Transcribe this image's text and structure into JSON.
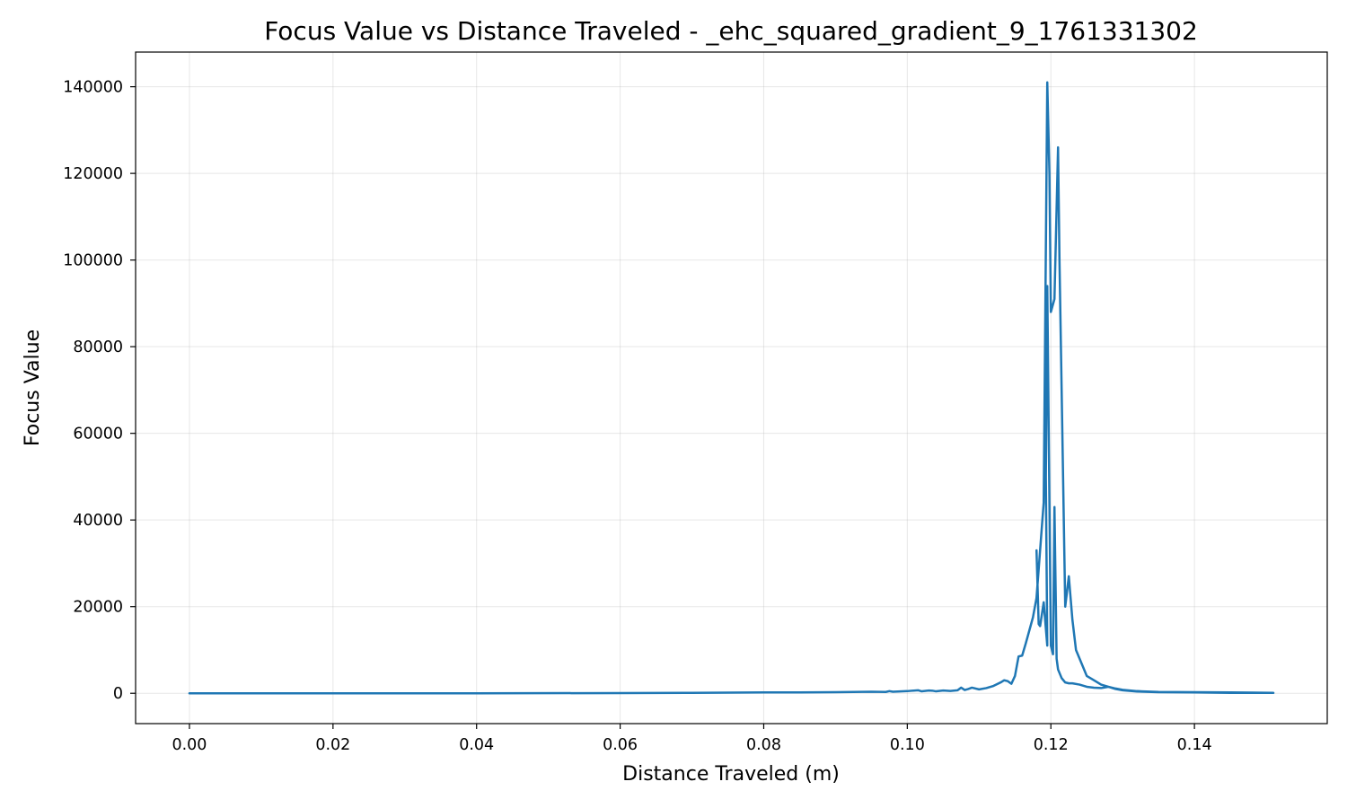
{
  "chart_data": {
    "type": "line",
    "title": "Focus Value vs Distance Traveled - _ehc_squared_gradient_9_1761331302",
    "xlabel": "Distance Traveled (m)",
    "ylabel": "Focus Value",
    "xlim": [
      -0.0075,
      0.1585
    ],
    "ylim": [
      -7000,
      148000
    ],
    "grid": true,
    "legend": "none",
    "x_ticks": [
      0.0,
      0.02,
      0.04,
      0.06,
      0.08,
      0.1,
      0.12,
      0.14
    ],
    "x_tick_labels": [
      "0.00",
      "0.02",
      "0.04",
      "0.06",
      "0.08",
      "0.10",
      "0.12",
      "0.14"
    ],
    "y_ticks": [
      0,
      20000,
      40000,
      60000,
      80000,
      100000,
      120000,
      140000
    ],
    "y_tick_labels": [
      "0",
      "20000",
      "40000",
      "60000",
      "80000",
      "100000",
      "120000",
      "140000"
    ],
    "series": [
      {
        "color": "#1f77b4",
        "x": [
          0.0,
          0.02,
          0.04,
          0.06,
          0.07,
          0.075,
          0.08,
          0.085,
          0.09,
          0.095,
          0.097,
          0.0975,
          0.098,
          0.1,
          0.1015,
          0.102,
          0.103,
          0.1035,
          0.104,
          0.105,
          0.106,
          0.107,
          0.1075,
          0.108,
          0.1085,
          0.109,
          0.11,
          0.111,
          0.112,
          0.113,
          0.1135,
          0.114,
          0.1145,
          0.115,
          0.1155,
          0.116,
          0.1165,
          0.117,
          0.1175,
          0.118,
          0.1185,
          0.119,
          0.1195,
          0.1198,
          0.12,
          0.1205,
          0.121,
          0.1212,
          0.1215,
          0.122,
          0.1225,
          0.123,
          0.1235,
          0.124,
          0.1245,
          0.125,
          0.126,
          0.127,
          0.128,
          0.129,
          0.13,
          0.132,
          0.135,
          0.14,
          0.145,
          0.151,
          0.145,
          0.14,
          0.135,
          0.132,
          0.13,
          0.129,
          0.128,
          0.127,
          0.126,
          0.125,
          0.124,
          0.123,
          0.1225,
          0.122,
          0.1215,
          0.121,
          0.1208,
          0.1205,
          0.1203,
          0.12,
          0.1195,
          0.1193,
          0.1195,
          0.119,
          0.1185,
          0.1183,
          0.118
        ],
        "y": [
          0,
          0,
          0,
          50,
          100,
          150,
          200,
          200,
          250,
          350,
          300,
          500,
          350,
          500,
          700,
          450,
          650,
          600,
          450,
          650,
          550,
          700,
          1300,
          750,
          1000,
          1300,
          900,
          1200,
          1700,
          2500,
          3000,
          2800,
          2200,
          4000,
          8500,
          8700,
          11500,
          14500,
          17500,
          22000,
          33000,
          44000,
          141000,
          120000,
          88000,
          91000,
          126000,
          100000,
          70000,
          20000,
          27000,
          17000,
          10000,
          8000,
          6000,
          4000,
          3000,
          2000,
          1500,
          1000,
          700,
          400,
          250,
          200,
          100,
          100,
          200,
          250,
          300,
          500,
          800,
          1100,
          1500,
          1200,
          1300,
          1500,
          2000,
          2300,
          2300,
          2500,
          3500,
          5500,
          8000,
          43000,
          9000,
          11000,
          94000,
          50000,
          11000,
          21000,
          15500,
          16000,
          33000
        ]
      }
    ]
  }
}
